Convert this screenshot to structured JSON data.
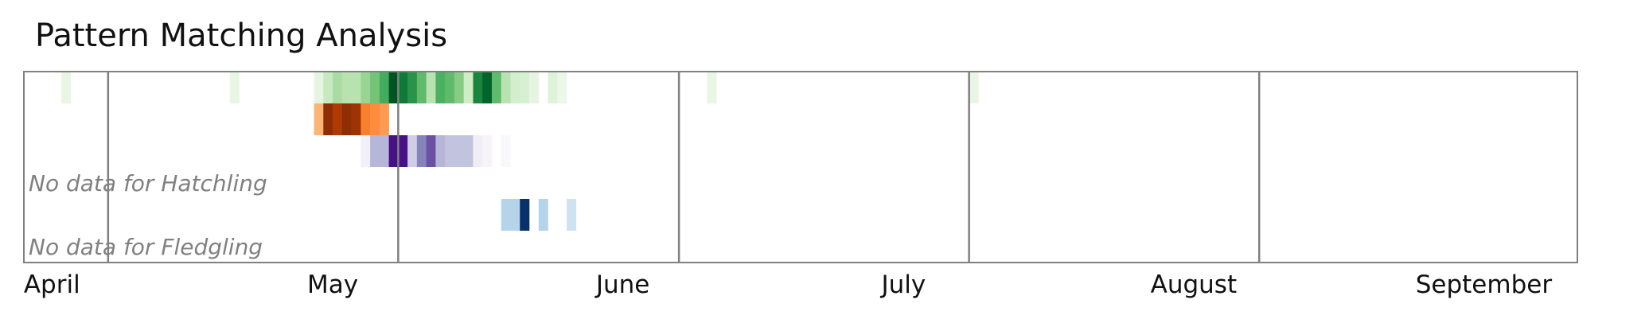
{
  "chart_data": {
    "type": "heatmap",
    "title": "Pattern Matching Analysis",
    "xlabel": "",
    "ylabel": "",
    "x_axis": {
      "unit": "day",
      "start": "2023-03-29",
      "end": "2023-09-11"
    },
    "month_ticks": [
      {
        "label": "April",
        "date": "2023-04-01"
      },
      {
        "label": "May",
        "date": "2023-05-01"
      },
      {
        "label": "June",
        "date": "2023-06-01"
      },
      {
        "label": "July",
        "date": "2023-07-01"
      },
      {
        "label": "August",
        "date": "2023-08-01"
      },
      {
        "label": "September",
        "date": "2023-09-01"
      }
    ],
    "month_boundaries": [
      "2023-04-07",
      "2023-05-08",
      "2023-06-07",
      "2023-07-08",
      "2023-08-08"
    ],
    "legend": "none",
    "grid": false,
    "rows": [
      {
        "name": "",
        "palette": "greens",
        "color": "#238b45",
        "cells": [
          {
            "date": "2023-04-02",
            "v": 0.1
          },
          {
            "date": "2023-04-20",
            "v": 0.1
          },
          {
            "date": "2023-04-29",
            "v": 0.12
          },
          {
            "date": "2023-04-30",
            "v": 0.25
          },
          {
            "date": "2023-05-01",
            "v": 0.35
          },
          {
            "date": "2023-05-02",
            "v": 0.3
          },
          {
            "date": "2023-05-03",
            "v": 0.3
          },
          {
            "date": "2023-05-04",
            "v": 0.4
          },
          {
            "date": "2023-05-05",
            "v": 0.5
          },
          {
            "date": "2023-05-06",
            "v": 0.62
          },
          {
            "date": "2023-05-07",
            "v": 0.95
          },
          {
            "date": "2023-05-08",
            "v": 0.82
          },
          {
            "date": "2023-05-09",
            "v": 0.72
          },
          {
            "date": "2023-05-10",
            "v": 0.55
          },
          {
            "date": "2023-05-11",
            "v": 0.3
          },
          {
            "date": "2023-05-12",
            "v": 0.6
          },
          {
            "date": "2023-05-13",
            "v": 0.55
          },
          {
            "date": "2023-05-14",
            "v": 0.45
          },
          {
            "date": "2023-05-15",
            "v": 0.22
          },
          {
            "date": "2023-05-16",
            "v": 0.78
          },
          {
            "date": "2023-05-17",
            "v": 0.9
          },
          {
            "date": "2023-05-18",
            "v": 0.55
          },
          {
            "date": "2023-05-19",
            "v": 0.3
          },
          {
            "date": "2023-05-20",
            "v": 0.2
          },
          {
            "date": "2023-05-21",
            "v": 0.18
          },
          {
            "date": "2023-05-22",
            "v": 0.12
          },
          {
            "date": "2023-05-24",
            "v": 0.15
          },
          {
            "date": "2023-05-25",
            "v": 0.08
          },
          {
            "date": "2023-06-10",
            "v": 0.1
          },
          {
            "date": "2023-07-08",
            "v": 0.1
          }
        ]
      },
      {
        "name": "",
        "palette": "oranges",
        "color": "#d94801",
        "cells": [
          {
            "date": "2023-04-29",
            "v": 0.35
          },
          {
            "date": "2023-04-30",
            "v": 0.95
          },
          {
            "date": "2023-05-01",
            "v": 0.85
          },
          {
            "date": "2023-05-02",
            "v": 0.95
          },
          {
            "date": "2023-05-03",
            "v": 0.9
          },
          {
            "date": "2023-05-04",
            "v": 0.55
          },
          {
            "date": "2023-05-05",
            "v": 0.5
          },
          {
            "date": "2023-05-06",
            "v": 0.45
          }
        ]
      },
      {
        "name": "",
        "palette": "purples",
        "color": "#6a51a3",
        "cells": [
          {
            "date": "2023-05-04",
            "v": 0.1
          },
          {
            "date": "2023-05-05",
            "v": 0.4
          },
          {
            "date": "2023-05-06",
            "v": 0.4
          },
          {
            "date": "2023-05-07",
            "v": 0.95
          },
          {
            "date": "2023-05-08",
            "v": 0.95
          },
          {
            "date": "2023-05-09",
            "v": 0.3
          },
          {
            "date": "2023-05-10",
            "v": 0.6
          },
          {
            "date": "2023-05-11",
            "v": 0.75
          },
          {
            "date": "2023-05-12",
            "v": 0.4
          },
          {
            "date": "2023-05-13",
            "v": 0.35
          },
          {
            "date": "2023-05-14",
            "v": 0.35
          },
          {
            "date": "2023-05-15",
            "v": 0.35
          },
          {
            "date": "2023-05-16",
            "v": 0.12
          },
          {
            "date": "2023-05-17",
            "v": 0.06
          },
          {
            "date": "2023-05-19",
            "v": 0.04
          }
        ]
      },
      {
        "name": "",
        "palette": "reds",
        "color": "#cb181d",
        "cells": [],
        "no_data_text": "No data for Hatchling"
      },
      {
        "name": "",
        "palette": "blues",
        "color": "#2171b5",
        "cells": [
          {
            "date": "2023-05-19",
            "v": 0.3
          },
          {
            "date": "2023-05-20",
            "v": 0.3
          },
          {
            "date": "2023-05-21",
            "v": 1.0
          },
          {
            "date": "2023-05-23",
            "v": 0.3
          },
          {
            "date": "2023-05-26",
            "v": 0.2
          }
        ]
      },
      {
        "name": "",
        "palette": "greys",
        "color": "#525252",
        "cells": [],
        "no_data_text": "No data for Fledgling"
      }
    ]
  }
}
